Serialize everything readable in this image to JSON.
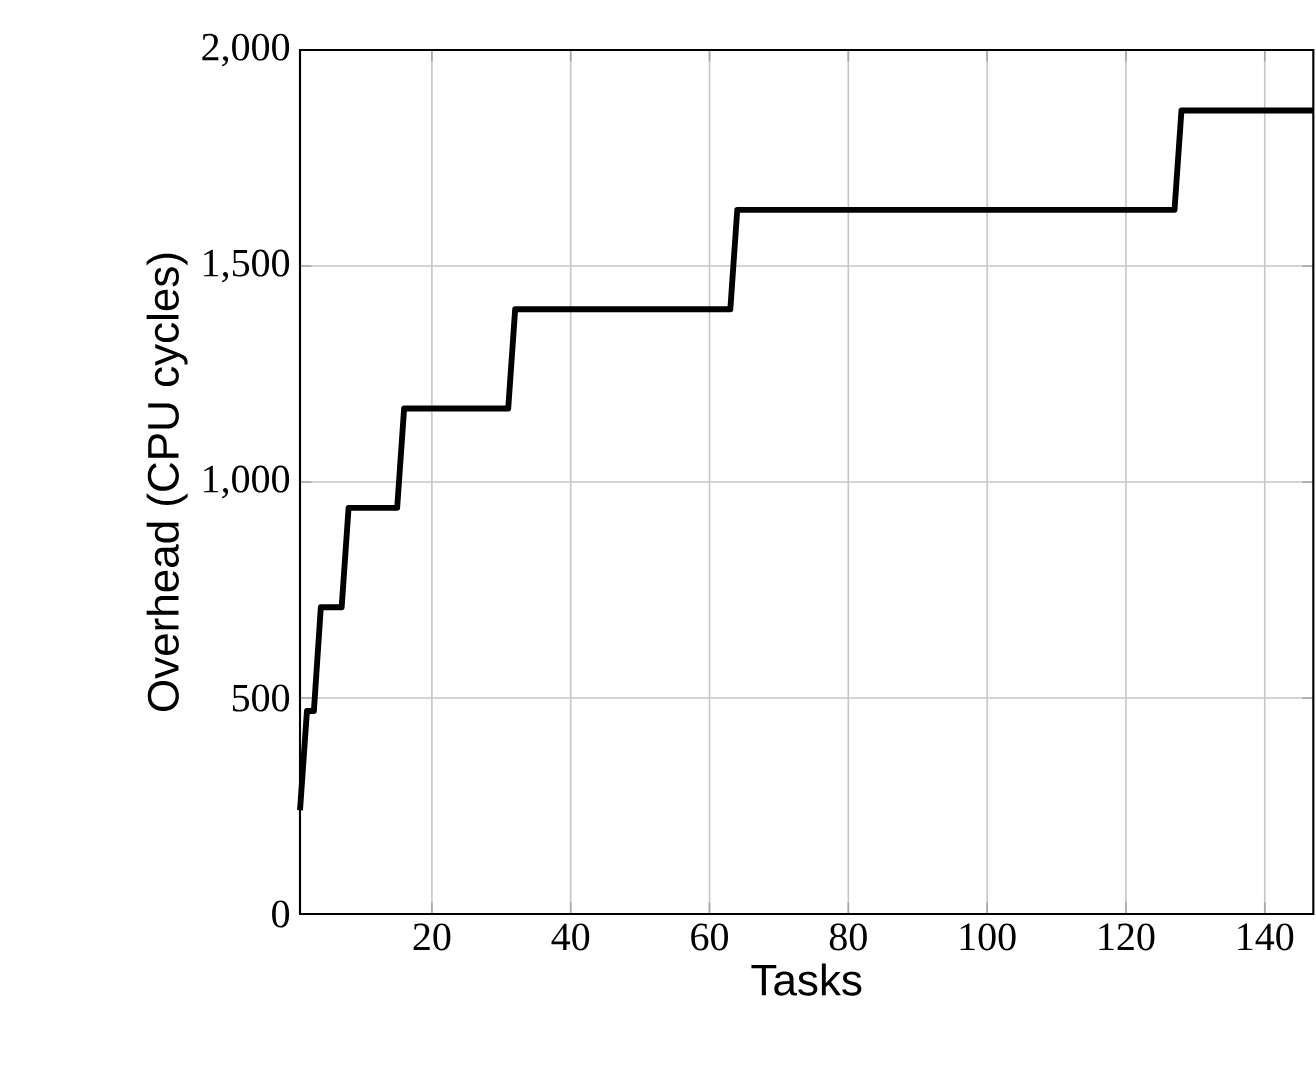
{
  "chart_data": {
    "type": "line",
    "xlabel": "Tasks",
    "ylabel": "Overhead (CPU cycles)",
    "x": [
      1,
      2,
      3,
      4,
      7,
      8,
      15,
      16,
      31,
      32,
      63,
      64,
      127,
      128,
      147
    ],
    "series": [
      {
        "color": "#000000",
        "values": [
          240,
          470,
          470,
          710,
          710,
          940,
          940,
          1170,
          1170,
          1400,
          1400,
          1630,
          1630,
          1860,
          1860
        ]
      }
    ],
    "xlim": [
      1,
      147
    ],
    "ylim": [
      0,
      2000
    ],
    "xticks": [
      20,
      40,
      60,
      80,
      100,
      120,
      140
    ],
    "yticks": [
      0,
      {
        "value": 500,
        "label": "500"
      },
      {
        "value": 1000,
        "label": "1,000"
      },
      {
        "value": 1500,
        "label": "1,500"
      },
      {
        "value": 2000,
        "label": "2,000"
      }
    ],
    "grid": true,
    "marker": "none",
    "line_style": "solid"
  }
}
